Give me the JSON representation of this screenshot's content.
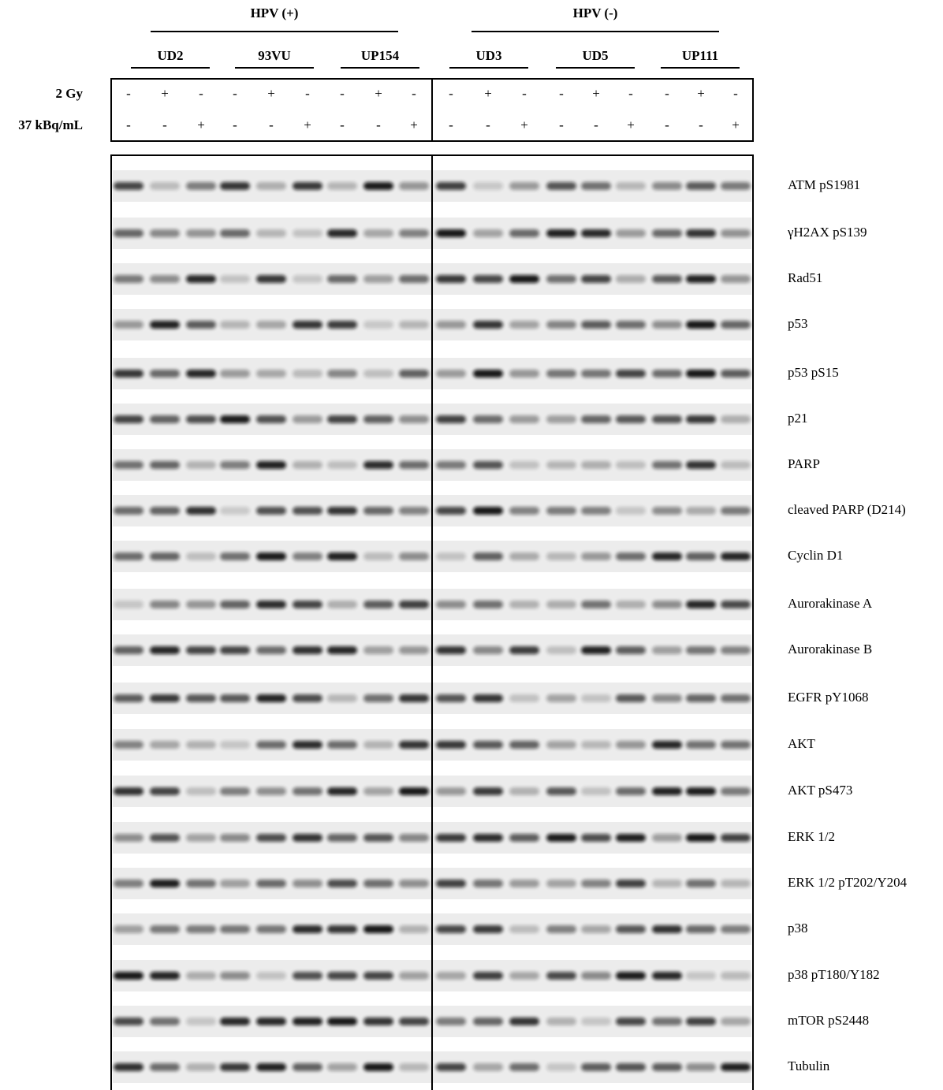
{
  "groups": [
    {
      "label": "HPV (+)",
      "cell_lines": [
        "UD2",
        "93VU",
        "UP154"
      ]
    },
    {
      "label": "HPV (-)",
      "cell_lines": [
        "UD3",
        "UD5",
        "UP111"
      ]
    }
  ],
  "treatments": [
    {
      "label": "2 Gy",
      "lanes": [
        "-",
        "+",
        "-",
        "-",
        "+",
        "-",
        "-",
        "+",
        "-",
        "-",
        "+",
        "-",
        "-",
        "+",
        "-",
        "-",
        "+",
        "-"
      ]
    },
    {
      "label": "37 kBq/mL",
      "lanes": [
        "-",
        "-",
        "+",
        "-",
        "-",
        "+",
        "-",
        "-",
        "+",
        "-",
        "-",
        "+",
        "-",
        "-",
        "+",
        "-",
        "-",
        "+"
      ]
    }
  ],
  "proteins": [
    "ATM pS1981",
    "γH2AX pS139",
    "Rad51",
    "p53",
    "p53 pS15",
    "p21",
    "PARP",
    "cleaved PARP (D214)",
    "Cyclin D1",
    "Aurorakinase A",
    "Aurorakinase B",
    "EGFR pY1068",
    "AKT",
    "AKT pS473",
    "ERK 1/2",
    "ERK 1/2 pT202/Y204",
    "p38",
    "p38 pT180/Y182",
    "mTOR pS2448",
    "Tubulin"
  ]
}
